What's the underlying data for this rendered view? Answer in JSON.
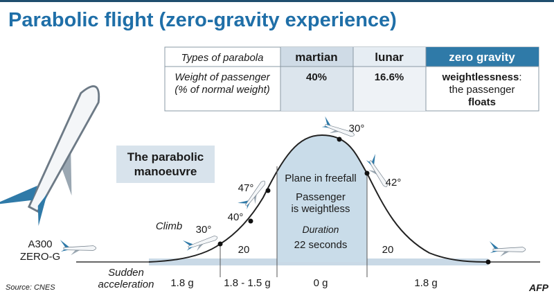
{
  "title": "Parabolic flight (zero-gravity experience)",
  "table": {
    "header": [
      "Types of parabola",
      "martian",
      "lunar",
      "zero gravity"
    ],
    "row_label": [
      "Weight of passenger",
      "(% of normal weight)"
    ],
    "martian": "40%",
    "lunar": "16.6%",
    "zero_gravity": {
      "term": "weightlessness",
      "punct": ":",
      "line2": "the passenger",
      "line3": "floats"
    }
  },
  "diagram": {
    "heading": [
      "The parabolic",
      "manoeuvre"
    ],
    "freefall": "Plane in freefall",
    "passenger": [
      "Passenger",
      "is weightless"
    ],
    "duration": [
      "Duration",
      "22 seconds"
    ],
    "angles": [
      "30°",
      "40°",
      "47°",
      "30°",
      "42°"
    ],
    "climb": "Climb",
    "seconds_left": "20",
    "seconds_right": "20",
    "plane": [
      "A300",
      "ZERO-G"
    ],
    "acceleration": [
      "Sudden",
      "acceleration"
    ],
    "g_levels": [
      "1.8 g",
      "1.8 - 1.5 g",
      "0 g",
      "1.8 g"
    ]
  },
  "source": "Source: CNES",
  "credit": "AFP"
}
